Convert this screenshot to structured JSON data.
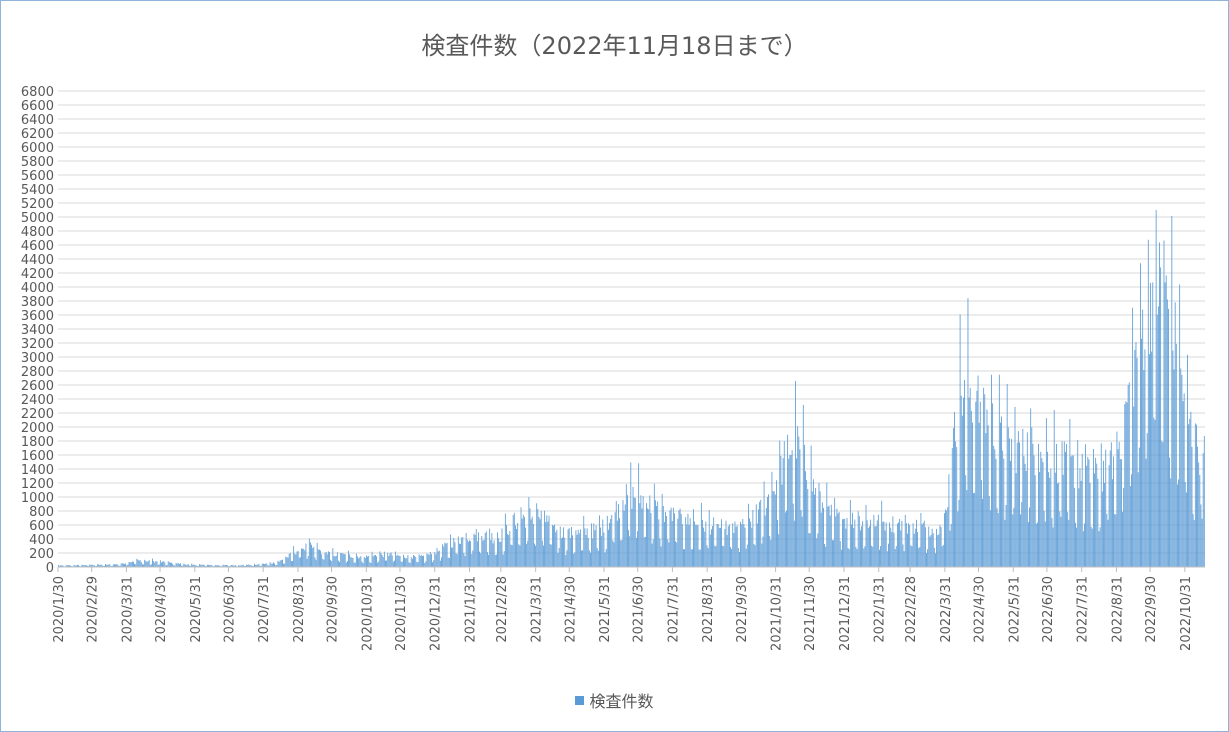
{
  "chart_data": {
    "type": "bar",
    "title": "検査件数（2022年11月18日まで）",
    "legend": {
      "position": "bottom",
      "entries": [
        "検査件数"
      ]
    },
    "grid": true,
    "ylim": [
      0,
      6800
    ],
    "ytick_step": 200,
    "yticks": [
      "0",
      "200",
      "400",
      "600",
      "800",
      "1000",
      "1200",
      "1400",
      "1600",
      "1800",
      "2000",
      "2200",
      "2400",
      "2600",
      "2800",
      "3000",
      "3200",
      "3400",
      "3600",
      "3800",
      "4000",
      "4200",
      "4400",
      "4600",
      "4800",
      "5000",
      "5200",
      "5400",
      "5600",
      "5800",
      "6000",
      "6200",
      "6400",
      "6600",
      "6800"
    ],
    "xtick_labels": [
      "2020/1/30",
      "2020/2/29",
      "2020/3/31",
      "2020/4/30",
      "2020/5/31",
      "2020/6/30",
      "2020/7/31",
      "2020/8/31",
      "2020/9/30",
      "2020/10/31",
      "2020/11/30",
      "2020/12/31",
      "2021/1/31",
      "2021/2/28",
      "2021/3/31",
      "2021/4/30",
      "2021/5/31",
      "2021/6/30",
      "2021/7/31",
      "2021/8/31",
      "2021/9/30",
      "2021/10/31",
      "2021/11/30",
      "2021/12/31",
      "2022/1/31",
      "2022/2/28",
      "2022/3/31",
      "2022/4/30",
      "2022/5/31",
      "2022/6/30",
      "2022/7/31",
      "2022/8/31",
      "2022/9/30",
      "2022/10/31"
    ],
    "x_range": [
      "2020/1/30",
      "2022/11/18"
    ],
    "series": [
      {
        "name": "検査件数",
        "color": "#5b9bd5",
        "weekly_approx_values": [
          20,
          20,
          25,
          25,
          30,
          30,
          30,
          35,
          40,
          70,
          90,
          80,
          80,
          70,
          60,
          50,
          40,
          30,
          30,
          30,
          25,
          25,
          25,
          25,
          30,
          30,
          40,
          50,
          70,
          120,
          200,
          260,
          290,
          240,
          200,
          180,
          170,
          160,
          150,
          140,
          150,
          170,
          180,
          160,
          150,
          140,
          130,
          160,
          200,
          260,
          330,
          380,
          420,
          450,
          440,
          430,
          400,
          500,
          620,
          680,
          700,
          720,
          660,
          560,
          500,
          460,
          470,
          480,
          500,
          520,
          600,
          780,
          920,
          1000,
          980,
          900,
          820,
          760,
          720,
          680,
          640,
          610,
          600,
          580,
          560,
          540,
          520,
          540,
          600,
          700,
          860,
          1050,
          1300,
          1600,
          1750,
          1500,
          1200,
          900,
          780,
          700,
          680,
          660,
          650,
          640,
          630,
          620,
          610,
          600,
          590,
          580,
          560,
          540,
          540,
          600,
          1600,
          2400,
          2500,
          2300,
          2200,
          2000,
          1800,
          1700,
          1650,
          1700,
          1650,
          1600,
          1550,
          1500,
          1450,
          1400,
          1350,
          1300,
          1250,
          1300,
          1400,
          1600,
          2100,
          2700,
          3200,
          3700,
          4000,
          3800,
          3300,
          2800,
          2100,
          1700,
          1600,
          1500,
          1450,
          1400,
          1450,
          1500,
          1550,
          1600,
          1650,
          1700,
          1800,
          1900,
          2000
        ]
      }
    ]
  }
}
